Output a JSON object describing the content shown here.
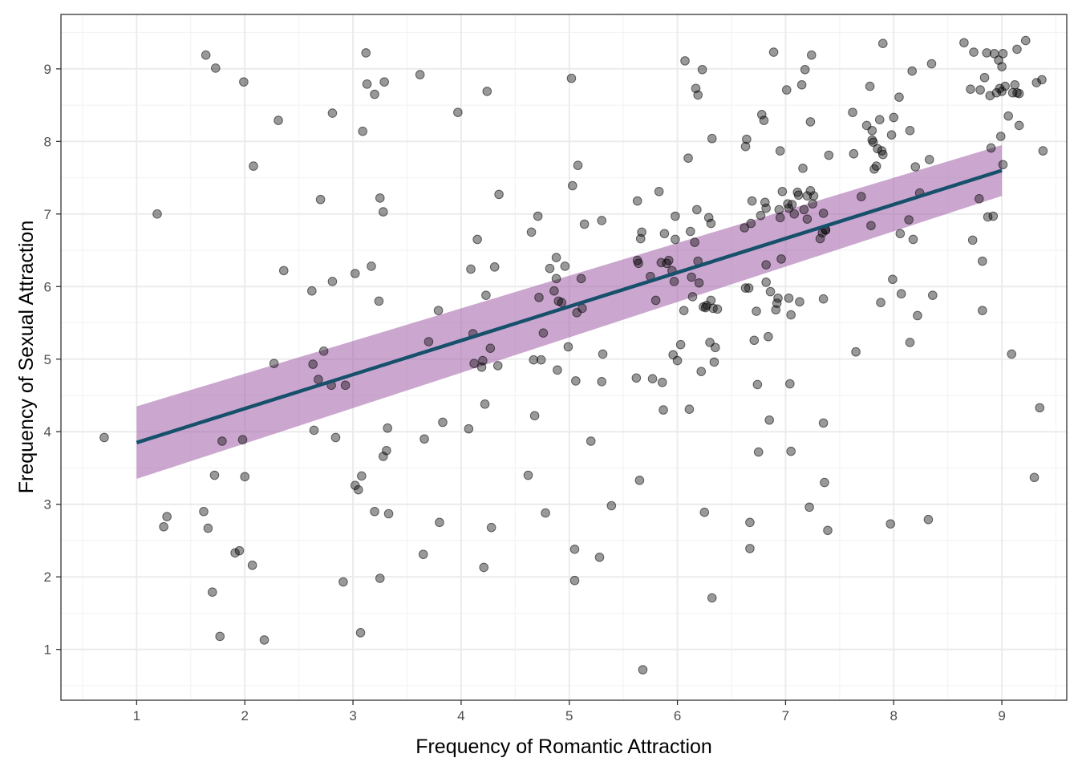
{
  "chart_data": {
    "type": "scatter",
    "title": "",
    "xlabel": "Frequency of Romantic Attraction",
    "ylabel": "Frequency of Sexual Attraction",
    "xlim": [
      0.3,
      9.6
    ],
    "ylim": [
      0.3,
      9.75
    ],
    "xticks": [
      1,
      2,
      3,
      4,
      5,
      6,
      7,
      8,
      9
    ],
    "yticks": [
      1,
      2,
      3,
      4,
      5,
      6,
      7,
      8,
      9
    ],
    "grid": true,
    "colors": {
      "points": "#000000",
      "fit_line": "#16506b",
      "ribbon": "#a15fa7"
    },
    "fit": {
      "x": [
        1,
        9
      ],
      "y": [
        3.85,
        7.6
      ],
      "ribbon_lower": [
        3.35,
        7.25
      ],
      "ribbon_upper": [
        4.35,
        7.95
      ]
    },
    "points": [
      [
        0.7,
        3.92
      ],
      [
        1.19,
        7.0
      ],
      [
        1.25,
        2.69
      ],
      [
        1.28,
        2.83
      ],
      [
        1.62,
        2.9
      ],
      [
        1.64,
        9.19
      ],
      [
        1.66,
        2.67
      ],
      [
        1.7,
        1.79
      ],
      [
        1.72,
        3.4
      ],
      [
        1.73,
        9.01
      ],
      [
        1.77,
        1.18
      ],
      [
        1.79,
        3.87
      ],
      [
        1.91,
        2.33
      ],
      [
        1.95,
        2.36
      ],
      [
        1.98,
        3.89
      ],
      [
        1.99,
        8.82
      ],
      [
        2.0,
        3.38
      ],
      [
        2.07,
        2.16
      ],
      [
        2.08,
        7.66
      ],
      [
        2.18,
        1.13
      ],
      [
        2.27,
        4.94
      ],
      [
        2.31,
        8.29
      ],
      [
        2.36,
        6.22
      ],
      [
        2.62,
        5.94
      ],
      [
        2.63,
        4.93
      ],
      [
        2.64,
        4.02
      ],
      [
        2.68,
        4.72
      ],
      [
        2.7,
        7.2
      ],
      [
        2.73,
        5.11
      ],
      [
        2.8,
        4.64
      ],
      [
        2.81,
        6.07
      ],
      [
        2.81,
        8.39
      ],
      [
        2.84,
        3.92
      ],
      [
        2.91,
        1.93
      ],
      [
        2.93,
        4.64
      ],
      [
        3.02,
        6.18
      ],
      [
        3.02,
        3.26
      ],
      [
        3.05,
        3.2
      ],
      [
        3.07,
        1.23
      ],
      [
        3.08,
        3.39
      ],
      [
        3.09,
        8.14
      ],
      [
        3.12,
        9.22
      ],
      [
        3.13,
        8.79
      ],
      [
        3.17,
        6.28
      ],
      [
        3.2,
        8.65
      ],
      [
        3.2,
        2.9
      ],
      [
        3.24,
        5.8
      ],
      [
        3.25,
        1.98
      ],
      [
        3.25,
        7.22
      ],
      [
        3.28,
        3.66
      ],
      [
        3.28,
        7.03
      ],
      [
        3.29,
        8.82
      ],
      [
        3.31,
        3.74
      ],
      [
        3.32,
        4.05
      ],
      [
        3.33,
        2.87
      ],
      [
        3.62,
        8.92
      ],
      [
        3.65,
        2.31
      ],
      [
        3.66,
        3.9
      ],
      [
        3.7,
        5.24
      ],
      [
        3.79,
        5.67
      ],
      [
        3.8,
        2.75
      ],
      [
        3.83,
        4.13
      ],
      [
        3.97,
        8.4
      ],
      [
        4.07,
        4.04
      ],
      [
        4.09,
        6.24
      ],
      [
        4.11,
        5.35
      ],
      [
        4.12,
        4.94
      ],
      [
        4.15,
        6.65
      ],
      [
        4.19,
        4.89
      ],
      [
        4.2,
        4.98
      ],
      [
        4.21,
        2.13
      ],
      [
        4.22,
        4.38
      ],
      [
        4.23,
        5.88
      ],
      [
        4.24,
        8.69
      ],
      [
        4.27,
        5.15
      ],
      [
        4.28,
        2.68
      ],
      [
        4.31,
        6.27
      ],
      [
        4.34,
        4.91
      ],
      [
        4.35,
        7.27
      ],
      [
        4.62,
        3.4
      ],
      [
        4.65,
        6.75
      ],
      [
        4.67,
        4.99
      ],
      [
        4.68,
        4.22
      ],
      [
        4.71,
        6.97
      ],
      [
        4.72,
        5.85
      ],
      [
        4.74,
        4.99
      ],
      [
        4.76,
        5.36
      ],
      [
        4.78,
        2.88
      ],
      [
        4.82,
        6.25
      ],
      [
        4.86,
        5.94
      ],
      [
        4.88,
        6.4
      ],
      [
        4.88,
        6.11
      ],
      [
        4.89,
        4.85
      ],
      [
        4.9,
        5.8
      ],
      [
        4.93,
        5.78
      ],
      [
        4.96,
        6.28
      ],
      [
        4.99,
        5.17
      ],
      [
        5.02,
        8.87
      ],
      [
        5.03,
        7.39
      ],
      [
        5.05,
        2.38
      ],
      [
        5.05,
        1.95
      ],
      [
        5.06,
        4.7
      ],
      [
        5.07,
        5.64
      ],
      [
        5.08,
        7.67
      ],
      [
        5.11,
        6.11
      ],
      [
        5.12,
        5.7
      ],
      [
        5.14,
        6.86
      ],
      [
        5.2,
        3.87
      ],
      [
        5.28,
        2.27
      ],
      [
        5.3,
        6.91
      ],
      [
        5.3,
        4.69
      ],
      [
        5.31,
        5.07
      ],
      [
        5.39,
        2.98
      ],
      [
        5.62,
        4.74
      ],
      [
        5.63,
        6.36
      ],
      [
        5.63,
        7.18
      ],
      [
        5.64,
        6.32
      ],
      [
        5.65,
        3.33
      ],
      [
        5.66,
        6.66
      ],
      [
        5.67,
        6.75
      ],
      [
        5.68,
        0.72
      ],
      [
        5.75,
        6.14
      ],
      [
        5.77,
        4.73
      ],
      [
        5.8,
        5.81
      ],
      [
        5.83,
        7.31
      ],
      [
        5.85,
        6.33
      ],
      [
        5.86,
        4.68
      ],
      [
        5.87,
        4.3
      ],
      [
        5.88,
        6.73
      ],
      [
        5.9,
        6.32
      ],
      [
        5.92,
        6.36
      ],
      [
        5.95,
        6.22
      ],
      [
        5.96,
        5.06
      ],
      [
        5.97,
        6.07
      ],
      [
        5.98,
        6.65
      ],
      [
        5.98,
        6.97
      ],
      [
        6.0,
        4.98
      ],
      [
        6.03,
        5.2
      ],
      [
        6.06,
        5.67
      ],
      [
        6.07,
        9.11
      ],
      [
        6.1,
        7.77
      ],
      [
        6.11,
        4.31
      ],
      [
        6.12,
        6.76
      ],
      [
        6.13,
        6.13
      ],
      [
        6.14,
        5.86
      ],
      [
        6.16,
        6.61
      ],
      [
        6.17,
        8.73
      ],
      [
        6.18,
        7.06
      ],
      [
        6.19,
        6.35
      ],
      [
        6.19,
        8.64
      ],
      [
        6.2,
        6.05
      ],
      [
        6.22,
        4.83
      ],
      [
        6.23,
        8.99
      ],
      [
        6.24,
        5.72
      ],
      [
        6.25,
        2.89
      ],
      [
        6.26,
        5.71
      ],
      [
        6.27,
        5.74
      ],
      [
        6.29,
        6.95
      ],
      [
        6.3,
        5.23
      ],
      [
        6.31,
        5.81
      ],
      [
        6.31,
        6.87
      ],
      [
        6.32,
        8.04
      ],
      [
        6.32,
        1.71
      ],
      [
        6.33,
        5.7
      ],
      [
        6.34,
        4.96
      ],
      [
        6.35,
        5.16
      ],
      [
        6.37,
        5.69
      ],
      [
        6.62,
        6.81
      ],
      [
        6.63,
        7.93
      ],
      [
        6.63,
        5.98
      ],
      [
        6.64,
        8.03
      ],
      [
        6.66,
        5.98
      ],
      [
        6.67,
        2.75
      ],
      [
        6.67,
        2.39
      ],
      [
        6.68,
        6.87
      ],
      [
        6.69,
        7.18
      ],
      [
        6.71,
        5.26
      ],
      [
        6.73,
        5.66
      ],
      [
        6.74,
        4.65
      ],
      [
        6.75,
        3.72
      ],
      [
        6.77,
        6.98
      ],
      [
        6.78,
        8.37
      ],
      [
        6.8,
        8.29
      ],
      [
        6.81,
        7.16
      ],
      [
        6.82,
        7.08
      ],
      [
        6.82,
        6.06
      ],
      [
        6.82,
        6.3
      ],
      [
        6.84,
        5.31
      ],
      [
        6.85,
        4.16
      ],
      [
        6.86,
        5.93
      ],
      [
        6.89,
        9.23
      ],
      [
        6.91,
        5.68
      ],
      [
        6.92,
        5.77
      ],
      [
        6.93,
        5.84
      ],
      [
        6.94,
        7.06
      ],
      [
        6.95,
        7.87
      ],
      [
        6.95,
        6.95
      ],
      [
        6.96,
        6.38
      ],
      [
        6.97,
        7.31
      ],
      [
        7.01,
        8.71
      ],
      [
        7.02,
        7.14
      ],
      [
        7.03,
        5.84
      ],
      [
        7.03,
        7.08
      ],
      [
        7.04,
        4.66
      ],
      [
        7.05,
        3.73
      ],
      [
        7.05,
        5.61
      ],
      [
        7.06,
        7.13
      ],
      [
        7.08,
        7.0
      ],
      [
        7.11,
        7.3
      ],
      [
        7.12,
        7.26
      ],
      [
        7.13,
        5.79
      ],
      [
        7.15,
        8.78
      ],
      [
        7.16,
        7.63
      ],
      [
        7.17,
        7.06
      ],
      [
        7.18,
        8.99
      ],
      [
        7.2,
        7.25
      ],
      [
        7.2,
        6.93
      ],
      [
        7.22,
        2.96
      ],
      [
        7.23,
        8.27
      ],
      [
        7.23,
        7.32
      ],
      [
        7.24,
        9.19
      ],
      [
        7.25,
        7.14
      ],
      [
        7.26,
        7.25
      ],
      [
        7.32,
        6.66
      ],
      [
        7.34,
        6.74
      ],
      [
        7.35,
        5.83
      ],
      [
        7.35,
        7.01
      ],
      [
        7.35,
        4.12
      ],
      [
        7.36,
        3.3
      ],
      [
        7.37,
        6.78
      ],
      [
        7.37,
        6.78
      ],
      [
        7.39,
        2.64
      ],
      [
        7.4,
        7.81
      ],
      [
        7.62,
        8.4
      ],
      [
        7.63,
        7.83
      ],
      [
        7.65,
        5.1
      ],
      [
        7.7,
        7.24
      ],
      [
        7.75,
        8.22
      ],
      [
        7.78,
        8.76
      ],
      [
        7.79,
        6.84
      ],
      [
        7.8,
        8.15
      ],
      [
        7.8,
        8.02
      ],
      [
        7.81,
        7.99
      ],
      [
        7.82,
        7.62
      ],
      [
        7.84,
        7.66
      ],
      [
        7.85,
        7.9
      ],
      [
        7.87,
        8.3
      ],
      [
        7.88,
        5.78
      ],
      [
        7.89,
        7.87
      ],
      [
        7.9,
        9.35
      ],
      [
        7.9,
        7.82
      ],
      [
        7.97,
        2.73
      ],
      [
        7.98,
        8.09
      ],
      [
        7.99,
        6.1
      ],
      [
        8.0,
        8.33
      ],
      [
        8.05,
        8.61
      ],
      [
        8.06,
        6.73
      ],
      [
        8.07,
        5.9
      ],
      [
        8.14,
        6.92
      ],
      [
        8.15,
        8.15
      ],
      [
        8.15,
        5.23
      ],
      [
        8.17,
        8.97
      ],
      [
        8.18,
        6.65
      ],
      [
        8.2,
        7.65
      ],
      [
        8.22,
        5.6
      ],
      [
        8.24,
        7.29
      ],
      [
        8.32,
        2.79
      ],
      [
        8.33,
        7.75
      ],
      [
        8.35,
        9.07
      ],
      [
        8.36,
        5.88
      ],
      [
        8.65,
        9.36
      ],
      [
        8.71,
        8.72
      ],
      [
        8.73,
        6.64
      ],
      [
        8.74,
        9.23
      ],
      [
        8.79,
        7.21
      ],
      [
        8.8,
        8.71
      ],
      [
        8.82,
        6.35
      ],
      [
        8.82,
        5.67
      ],
      [
        8.84,
        8.88
      ],
      [
        8.86,
        9.22
      ],
      [
        8.87,
        6.96
      ],
      [
        8.89,
        8.63
      ],
      [
        8.9,
        7.91
      ],
      [
        8.92,
        6.97
      ],
      [
        8.93,
        9.21
      ],
      [
        8.95,
        8.67
      ],
      [
        8.97,
        9.12
      ],
      [
        8.98,
        8.73
      ],
      [
        8.99,
        8.07
      ],
      [
        9.0,
        9.03
      ],
      [
        9.0,
        8.69
      ],
      [
        9.01,
        9.21
      ],
      [
        9.01,
        7.68
      ],
      [
        9.03,
        8.76
      ],
      [
        9.06,
        8.35
      ],
      [
        9.09,
        5.07
      ],
      [
        9.1,
        8.67
      ],
      [
        9.12,
        8.78
      ],
      [
        9.14,
        9.27
      ],
      [
        9.14,
        8.67
      ],
      [
        9.16,
        8.66
      ],
      [
        9.16,
        8.22
      ],
      [
        9.22,
        9.39
      ],
      [
        9.3,
        3.37
      ],
      [
        9.32,
        8.81
      ],
      [
        9.35,
        4.33
      ],
      [
        9.37,
        8.85
      ],
      [
        9.38,
        7.87
      ]
    ]
  }
}
